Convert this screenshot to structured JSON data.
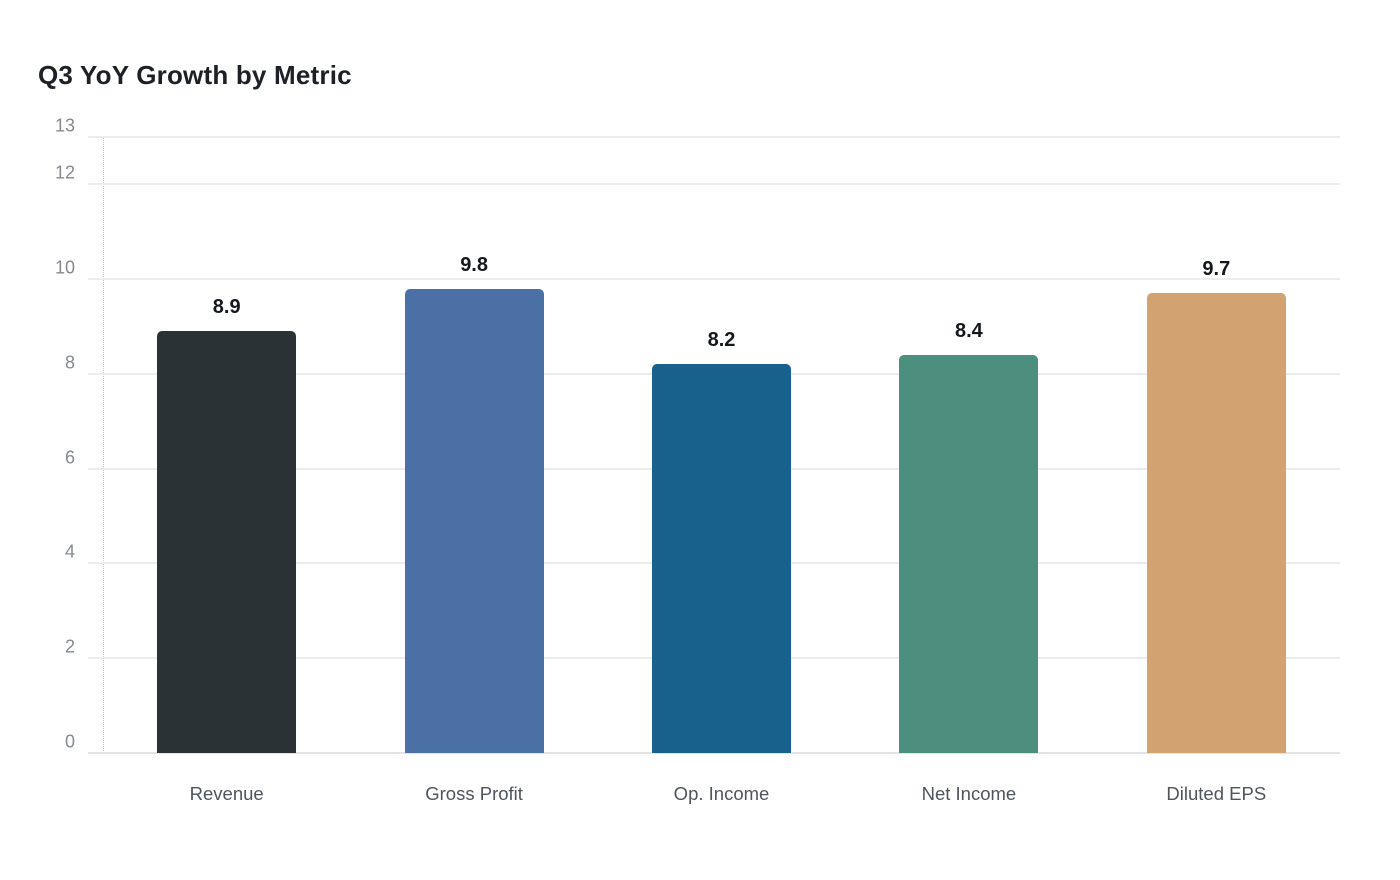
{
  "chart": {
    "title": "Q3 YoY Growth by Metric"
  },
  "chart_data": {
    "type": "bar",
    "title": "Q3 YoY Growth by Metric",
    "categories": [
      "Revenue",
      "Gross Profit",
      "Op. Income",
      "Net Income",
      "Diluted EPS"
    ],
    "values": [
      8.9,
      9.8,
      8.2,
      8.4,
      9.7
    ],
    "value_labels": [
      "8.9",
      "9.8",
      "8.2",
      "8.4",
      "9.7"
    ],
    "bar_colors": [
      "#2b3236",
      "#4b70a6",
      "#17618c",
      "#4d8f7e",
      "#d2a271"
    ],
    "xlabel": "",
    "ylabel": "",
    "ylim": [
      0,
      13
    ],
    "yticks": [
      0,
      2,
      4,
      6,
      8,
      10,
      12,
      13
    ],
    "grid": true,
    "legend": false,
    "colors": {
      "background": "#ffffff",
      "grid_line": "#ececec",
      "baseline": "#e3e3e6",
      "axis_dotted_line": "#c9c9ce",
      "ytick_label": "#85898f",
      "xtick_label": "#4e555c",
      "value_label": "#14181d",
      "title": "#1d2126"
    }
  }
}
